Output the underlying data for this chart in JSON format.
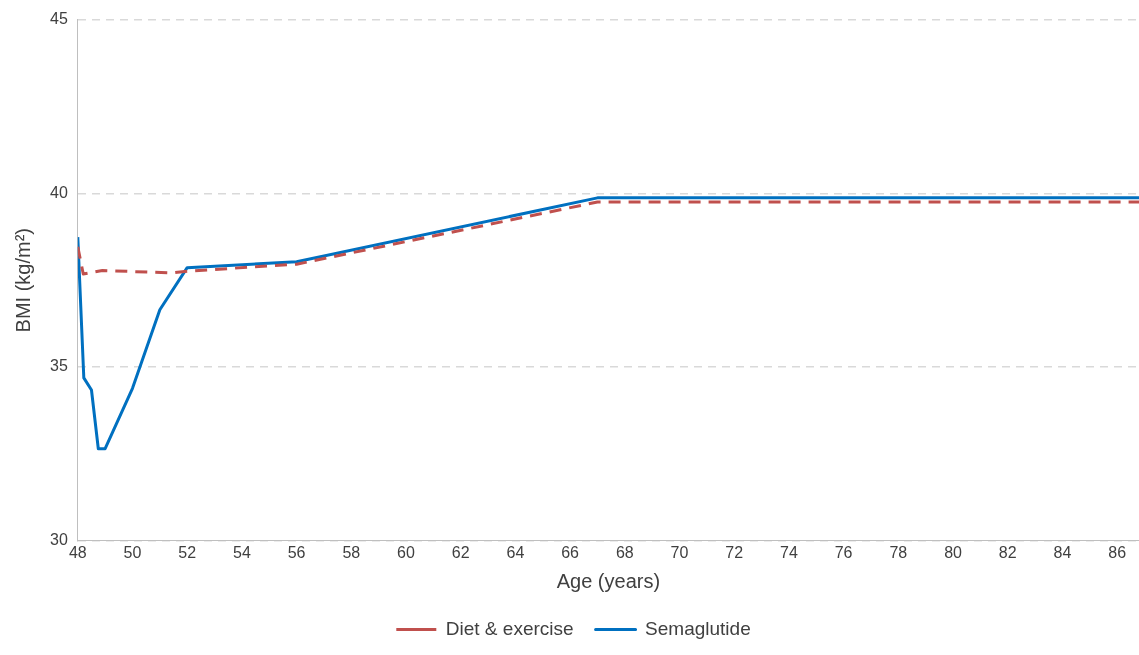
{
  "chart_data": {
    "type": "line",
    "xlabel": "Age (years)",
    "ylabel": "BMI (kg/m²)",
    "xlim": [
      48,
      86.8
    ],
    "xticks": [
      48,
      50,
      52,
      54,
      56,
      58,
      60,
      62,
      64,
      66,
      68,
      70,
      72,
      74,
      76,
      78,
      80,
      82,
      84,
      86
    ],
    "ylim": [
      30,
      45
    ],
    "yticks": [
      30,
      35,
      40,
      45
    ],
    "grid": "y",
    "legend": "bottom",
    "marker": "none",
    "series": [
      {
        "name": "Diet & exercise",
        "color": "#c0504d",
        "line_style": "dashed",
        "x": [
          48,
          48.2,
          48.9,
          51.4,
          52,
          56,
          67,
          86.8
        ],
        "values": [
          38.46,
          37.68,
          37.78,
          37.71,
          37.76,
          37.96,
          39.75,
          39.75
        ]
      },
      {
        "name": "Semaglutide",
        "color": "#0070c0",
        "line_style": "solid",
        "x": [
          48,
          48.22,
          48.5,
          48.75,
          49,
          50,
          51,
          52,
          56,
          67,
          86.8
        ],
        "values": [
          38.74,
          34.69,
          34.34,
          32.65,
          32.65,
          34.39,
          36.65,
          37.86,
          38.03,
          39.87,
          39.87
        ]
      }
    ]
  }
}
